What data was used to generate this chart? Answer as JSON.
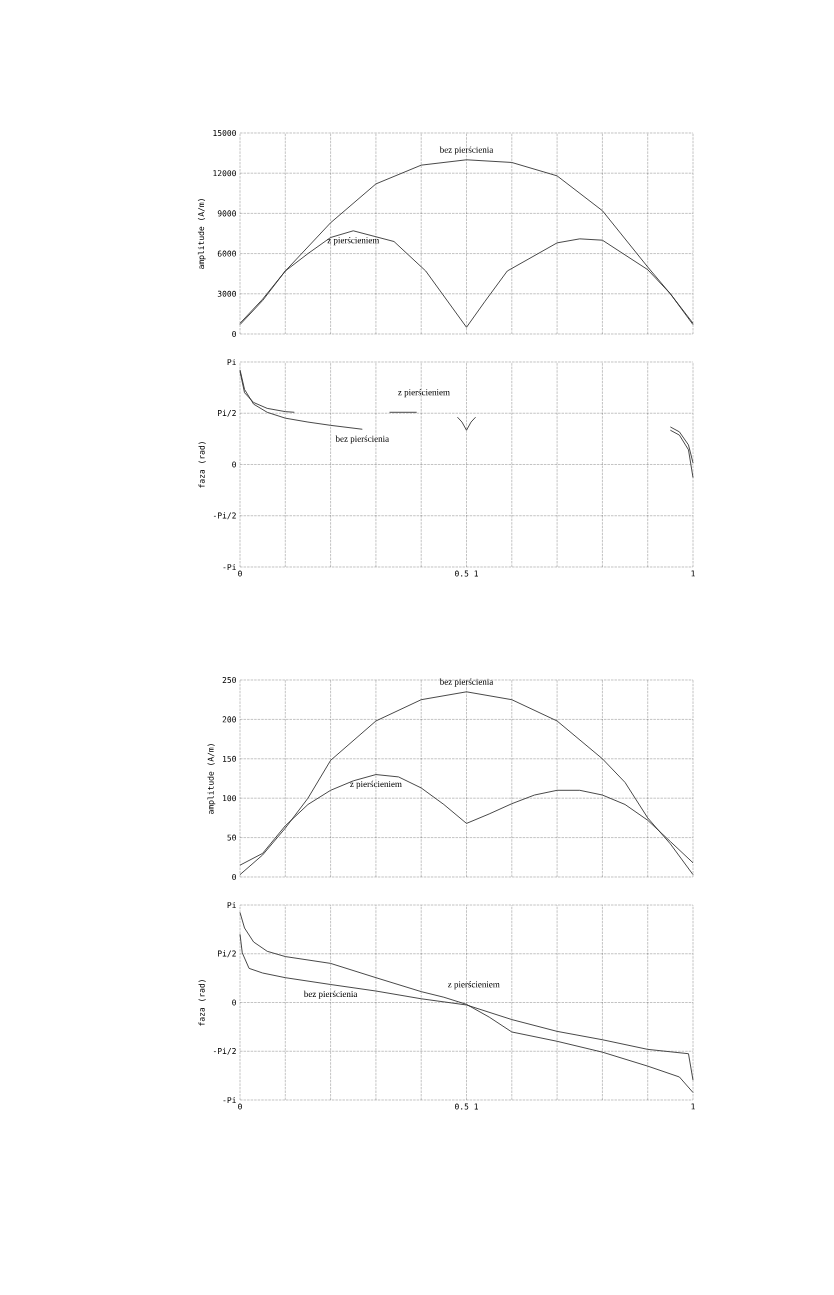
{
  "chart_data": [
    {
      "type": "line",
      "ylabel": "amplitude (A/m)",
      "xlim": [
        0,
        1
      ],
      "ylim": [
        0,
        15000
      ],
      "tick_labels": "y",
      "grid": true,
      "marker": "none",
      "line_style": "solid",
      "xticks": [
        {
          "value": 0,
          "label": null
        },
        {
          "value": 0.1,
          "label": null
        },
        {
          "value": 0.2,
          "label": null
        },
        {
          "value": 0.3,
          "label": null
        },
        {
          "value": 0.4,
          "label": null
        },
        {
          "value": 0.5,
          "label": null
        },
        {
          "value": 0.6,
          "label": null
        },
        {
          "value": 0.7,
          "label": null
        },
        {
          "value": 0.8,
          "label": null
        },
        {
          "value": 0.9,
          "label": null
        },
        {
          "value": 1,
          "label": null
        }
      ],
      "yticks": [
        0,
        3000,
        6000,
        9000,
        12000,
        15000
      ],
      "series": [
        {
          "name": "bez pierścienia",
          "color": "#333333",
          "x": [
            0,
            0.05,
            0.1,
            0.2,
            0.3,
            0.4,
            0.5,
            0.6,
            0.7,
            0.8,
            0.9,
            0.95,
            1
          ],
          "values": [
            800,
            2600,
            4700,
            8300,
            11200,
            12600,
            13000,
            12800,
            11800,
            9200,
            5000,
            3000,
            800
          ]
        },
        {
          "name": "z pierścieniem",
          "color": "#333333",
          "x": [
            0,
            0.05,
            0.1,
            0.15,
            0.2,
            0.25,
            0.34,
            0.41,
            0.5,
            0.54,
            0.59,
            0.7,
            0.75,
            0.8,
            0.9,
            0.95,
            1
          ],
          "values": [
            700,
            2500,
            4700,
            6000,
            7200,
            7700,
            6900,
            4700,
            500,
            2400,
            4700,
            6800,
            7100,
            7000,
            4800,
            3000,
            700
          ]
        }
      ]
    },
    {
      "type": "line",
      "ylabel": "faza (rad)",
      "xlim": [
        0,
        1
      ],
      "ylim": [
        -3.1416,
        3.1416
      ],
      "grid": true,
      "marker": "none",
      "line_style": "solid",
      "xticks": [
        {
          "value": 0,
          "label": "0"
        },
        {
          "value": 0.1,
          "label": null
        },
        {
          "value": 0.2,
          "label": null
        },
        {
          "value": 0.3,
          "label": null
        },
        {
          "value": 0.4,
          "label": null
        },
        {
          "value": 0.5,
          "label": "0.5 1"
        },
        {
          "value": 0.6,
          "label": null
        },
        {
          "value": 0.7,
          "label": null
        },
        {
          "value": 0.8,
          "label": null
        },
        {
          "value": 0.9,
          "label": null
        },
        {
          "value": 1,
          "label": "1"
        }
      ],
      "yticks": [
        {
          "value": -3.1416,
          "label": "-Pi"
        },
        {
          "value": -1.5708,
          "label": "-Pi/2"
        },
        0,
        {
          "value": 1.5708,
          "label": "Pi/2"
        },
        {
          "value": 3.1416,
          "label": "Pi"
        }
      ],
      "series": [
        {
          "name": "z pierścieniem",
          "color": "#333333",
          "x": [
            0,
            0.01,
            0.03,
            0.06,
            0.1,
            0.12,
            0.2,
            0.33,
            0.39,
            0.6,
            0.95,
            0.97,
            0.99,
            1
          ],
          "values": [
            2.85,
            2.2,
            1.9,
            1.72,
            1.62,
            1.6,
            null,
            1.6,
            1.6,
            null,
            1.15,
            1.0,
            0.6,
            0.05
          ]
        },
        {
          "name": "bez pierścienia",
          "color": "#333333",
          "x": [
            0,
            0.01,
            0.03,
            0.06,
            0.1,
            0.15,
            0.2,
            0.27,
            0.4,
            0.48,
            0.49,
            0.5,
            0.51,
            0.52,
            0.7,
            0.95,
            0.97,
            0.99,
            1
          ],
          "values": [
            2.9,
            2.3,
            1.85,
            1.6,
            1.42,
            1.3,
            1.2,
            1.08,
            null,
            1.45,
            1.3,
            1.05,
            1.3,
            1.45,
            null,
            1.05,
            0.9,
            0.45,
            -0.4
          ]
        }
      ]
    },
    {
      "type": "line",
      "ylabel": "amplitude (A/m)",
      "xlim": [
        0,
        1
      ],
      "ylim": [
        0,
        250
      ],
      "tick_labels": "y",
      "grid": true,
      "marker": "none",
      "line_style": "solid",
      "xticks": [
        {
          "value": 0,
          "label": null
        },
        {
          "value": 0.1,
          "label": null
        },
        {
          "value": 0.2,
          "label": null
        },
        {
          "value": 0.3,
          "label": null
        },
        {
          "value": 0.4,
          "label": null
        },
        {
          "value": 0.5,
          "label": null
        },
        {
          "value": 0.6,
          "label": null
        },
        {
          "value": 0.7,
          "label": null
        },
        {
          "value": 0.8,
          "label": null
        },
        {
          "value": 0.9,
          "label": null
        },
        {
          "value": 1,
          "label": null
        }
      ],
      "yticks": [
        0,
        50,
        100,
        150,
        200,
        250
      ],
      "series": [
        {
          "name": "bez pierścienia",
          "color": "#333333",
          "x": [
            0,
            0.05,
            0.1,
            0.15,
            0.2,
            0.3,
            0.4,
            0.5,
            0.6,
            0.7,
            0.8,
            0.85,
            0.9,
            0.95,
            1
          ],
          "values": [
            3,
            28,
            62,
            100,
            148,
            198,
            225,
            235,
            225,
            198,
            150,
            120,
            75,
            42,
            3
          ]
        },
        {
          "name": "z pierścieniem",
          "color": "#333333",
          "x": [
            0,
            0.05,
            0.1,
            0.15,
            0.2,
            0.25,
            0.3,
            0.35,
            0.4,
            0.45,
            0.5,
            0.55,
            0.6,
            0.65,
            0.7,
            0.75,
            0.8,
            0.85,
            0.9,
            0.95,
            1
          ],
          "values": [
            15,
            30,
            65,
            92,
            110,
            122,
            130,
            127,
            113,
            92,
            68,
            80,
            93,
            104,
            110,
            110,
            104,
            92,
            72,
            45,
            18
          ]
        }
      ]
    },
    {
      "type": "line",
      "ylabel": "faza (rad)",
      "xlim": [
        0,
        1
      ],
      "ylim": [
        -3.1416,
        3.1416
      ],
      "grid": true,
      "marker": "none",
      "line_style": "solid",
      "xticks": [
        {
          "value": 0,
          "label": "0"
        },
        {
          "value": 0.1,
          "label": null
        },
        {
          "value": 0.2,
          "label": null
        },
        {
          "value": 0.3,
          "label": null
        },
        {
          "value": 0.4,
          "label": null
        },
        {
          "value": 0.5,
          "label": "0.5 1"
        },
        {
          "value": 0.6,
          "label": null
        },
        {
          "value": 0.7,
          "label": null
        },
        {
          "value": 0.8,
          "label": null
        },
        {
          "value": 0.9,
          "label": null
        },
        {
          "value": 1,
          "label": "1"
        }
      ],
      "yticks": [
        {
          "value": -3.1416,
          "label": "-Pi"
        },
        {
          "value": -1.5708,
          "label": "-Pi/2"
        },
        0,
        {
          "value": 1.5708,
          "label": "Pi/2"
        },
        {
          "value": 3.1416,
          "label": "Pi"
        }
      ],
      "series": [
        {
          "name": "z pierścieniem",
          "color": "#333333",
          "x": [
            0,
            0.01,
            0.03,
            0.06,
            0.1,
            0.2,
            0.3,
            0.4,
            0.45,
            0.5,
            0.55,
            0.6,
            0.7,
            0.8,
            0.9,
            0.97,
            1
          ],
          "values": [
            2.9,
            2.4,
            1.95,
            1.65,
            1.48,
            1.26,
            0.8,
            0.35,
            0.17,
            -0.06,
            -0.47,
            -0.95,
            -1.25,
            -1.6,
            -2.05,
            -2.4,
            -2.9
          ]
        },
        {
          "name": "bez pierścienia",
          "color": "#333333",
          "x": [
            0,
            0.005,
            0.02,
            0.05,
            0.1,
            0.2,
            0.3,
            0.4,
            0.5,
            0.6,
            0.7,
            0.8,
            0.9,
            0.99,
            1
          ],
          "values": [
            2.2,
            1.6,
            1.1,
            0.95,
            0.8,
            0.58,
            0.37,
            0.12,
            -0.08,
            -0.55,
            -0.93,
            -1.2,
            -1.51,
            -1.65,
            -2.5
          ]
        }
      ]
    }
  ]
}
